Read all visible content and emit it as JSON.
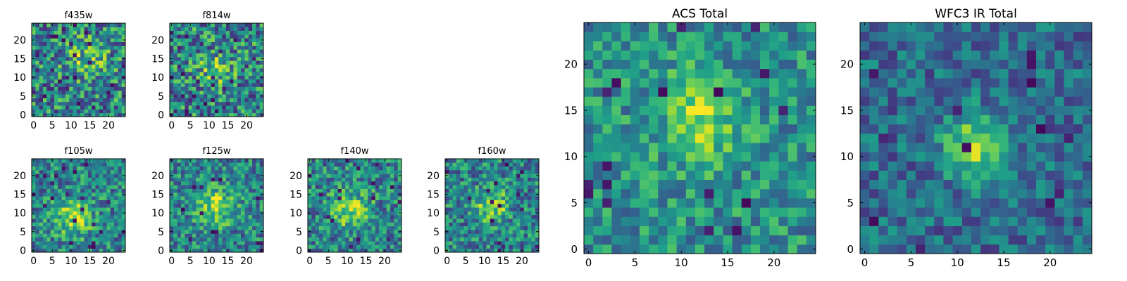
{
  "chart_data": [
    {
      "type": "heatmap",
      "title": "f435w",
      "rows": 25,
      "cols": 25,
      "xlim": [
        0,
        24
      ],
      "ylim": [
        0,
        24
      ],
      "xticks": [
        0,
        5,
        10,
        15,
        20
      ],
      "yticks": [
        0,
        5,
        10,
        15,
        20
      ],
      "colormap": "viridis",
      "value_range": [
        0,
        1
      ],
      "noise_level": 0.7,
      "feature": {
        "center_x": 14,
        "center_y": 15,
        "sigma": 4,
        "amplitude": 0.25
      },
      "seed": 11
    },
    {
      "type": "heatmap",
      "title": "f814w",
      "rows": 25,
      "cols": 25,
      "xlim": [
        0,
        24
      ],
      "ylim": [
        0,
        24
      ],
      "xticks": [
        0,
        5,
        10,
        15,
        20
      ],
      "yticks": [
        0,
        5,
        10,
        15,
        20
      ],
      "colormap": "viridis",
      "value_range": [
        0,
        1
      ],
      "noise_level": 0.7,
      "feature": {
        "center_x": 12,
        "center_y": 12,
        "sigma": 3,
        "amplitude": 0.3
      },
      "seed": 23
    },
    {
      "type": "heatmap",
      "title": "f105w",
      "rows": 25,
      "cols": 25,
      "xlim": [
        0,
        24
      ],
      "ylim": [
        0,
        24
      ],
      "xticks": [
        0,
        5,
        10,
        15,
        20
      ],
      "yticks": [
        0,
        5,
        10,
        15,
        20
      ],
      "colormap": "viridis",
      "value_range": [
        0,
        1
      ],
      "noise_level": 0.55,
      "feature": {
        "center_x": 11,
        "center_y": 9,
        "sigma": 3.5,
        "amplitude": 0.4
      },
      "seed": 37
    },
    {
      "type": "heatmap",
      "title": "f125w",
      "rows": 25,
      "cols": 25,
      "xlim": [
        0,
        24
      ],
      "ylim": [
        0,
        24
      ],
      "xticks": [
        0,
        5,
        10,
        15,
        20
      ],
      "yticks": [
        0,
        5,
        10,
        15,
        20
      ],
      "colormap": "viridis",
      "value_range": [
        0,
        1
      ],
      "noise_level": 0.55,
      "feature": {
        "center_x": 12,
        "center_y": 12,
        "sigma": 3.5,
        "amplitude": 0.4
      },
      "seed": 41
    },
    {
      "type": "heatmap",
      "title": "f140w",
      "rows": 25,
      "cols": 25,
      "xlim": [
        0,
        24
      ],
      "ylim": [
        0,
        24
      ],
      "xticks": [
        0,
        5,
        10,
        15,
        20
      ],
      "yticks": [
        0,
        5,
        10,
        15,
        20
      ],
      "colormap": "viridis",
      "value_range": [
        0,
        1
      ],
      "noise_level": 0.55,
      "feature": {
        "center_x": 11,
        "center_y": 11,
        "sigma": 3.5,
        "amplitude": 0.4
      },
      "seed": 53
    },
    {
      "type": "heatmap",
      "title": "f160w",
      "rows": 25,
      "cols": 25,
      "xlim": [
        0,
        24
      ],
      "ylim": [
        0,
        24
      ],
      "xticks": [
        0,
        5,
        10,
        15,
        20
      ],
      "yticks": [
        0,
        5,
        10,
        15,
        20
      ],
      "colormap": "viridis",
      "value_range": [
        0,
        1
      ],
      "noise_level": 0.55,
      "feature": {
        "center_x": 12,
        "center_y": 12,
        "sigma": 3,
        "amplitude": 0.4
      },
      "seed": 67
    },
    {
      "type": "heatmap",
      "title": "ACS Total",
      "rows": 25,
      "cols": 25,
      "xlim": [
        0,
        24
      ],
      "ylim": [
        0,
        24
      ],
      "xticks": [
        0,
        5,
        10,
        15,
        20
      ],
      "yticks": [
        0,
        5,
        10,
        15,
        20
      ],
      "colormap": "viridis",
      "value_range": [
        0,
        1
      ],
      "noise_level": 0.45,
      "base_level": 0.5,
      "feature": {
        "center_x": 12,
        "center_y": 14,
        "sigma": 3,
        "amplitude": 0.35
      },
      "seed": 79
    },
    {
      "type": "heatmap",
      "title": "WFC3 IR Total",
      "rows": 25,
      "cols": 25,
      "xlim": [
        0,
        24
      ],
      "ylim": [
        0,
        24
      ],
      "xticks": [
        0,
        5,
        10,
        15,
        20
      ],
      "yticks": [
        0,
        5,
        10,
        15,
        20
      ],
      "colormap": "viridis",
      "value_range": [
        0,
        1
      ],
      "noise_level": 0.4,
      "base_level": 0.35,
      "feature": {
        "center_x": 12,
        "center_y": 11,
        "sigma": 2.5,
        "amplitude": 0.5
      },
      "seed": 97
    }
  ],
  "colors": {
    "axes": "#000000",
    "background": "#ffffff"
  }
}
